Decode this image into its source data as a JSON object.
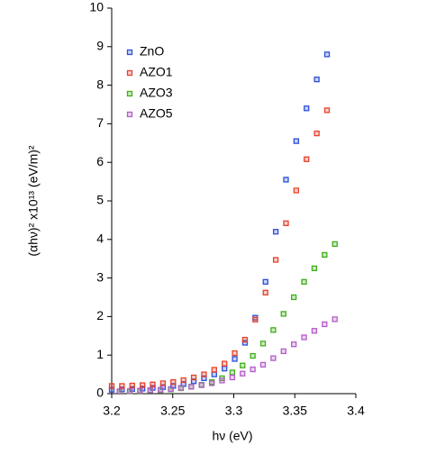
{
  "chart_data": {
    "type": "scatter",
    "xlabel": "hν (eV)",
    "ylabel": "(αhν)² x10¹³ (eV/m)²",
    "xlim": [
      3.2,
      3.4
    ],
    "xticks": [
      3.2,
      3.25,
      3.3,
      3.35,
      3.4
    ],
    "ylim": [
      0,
      10
    ],
    "yticks": [
      0,
      1,
      2,
      3,
      4,
      5,
      6,
      7,
      8,
      9,
      10
    ],
    "legend": "upper left",
    "series": [
      {
        "name": "ZnO",
        "color": "#2b4fd8",
        "x": [
          3.2,
          3.2084,
          3.2168,
          3.2252,
          3.2336,
          3.242,
          3.2504,
          3.2588,
          3.2672,
          3.2756,
          3.284,
          3.2924,
          3.3008,
          3.3092,
          3.3176,
          3.326,
          3.3344,
          3.3428,
          3.3512,
          3.3596,
          3.368,
          3.3764
        ],
        "values": [
          0.1,
          0.11,
          0.12,
          0.13,
          0.15,
          0.17,
          0.2,
          0.25,
          0.32,
          0.4,
          0.5,
          0.65,
          0.9,
          1.32,
          1.97,
          2.9,
          4.2,
          5.55,
          6.55,
          7.4,
          8.15,
          8.8
        ]
      },
      {
        "name": "AZO1",
        "color": "#e8402a",
        "x": [
          3.2,
          3.2084,
          3.2168,
          3.2252,
          3.2336,
          3.242,
          3.2504,
          3.2588,
          3.2672,
          3.2756,
          3.284,
          3.2924,
          3.3008,
          3.3092,
          3.3176,
          3.326,
          3.3344,
          3.3428,
          3.3512,
          3.3596,
          3.368,
          3.3764
        ],
        "values": [
          0.2,
          0.2,
          0.21,
          0.22,
          0.24,
          0.27,
          0.3,
          0.35,
          0.42,
          0.5,
          0.62,
          0.78,
          1.05,
          1.4,
          1.92,
          2.62,
          3.47,
          4.42,
          5.27,
          6.08,
          6.75,
          7.35
        ]
      },
      {
        "name": "AZO3",
        "color": "#3fae1a",
        "x": [
          3.2064,
          3.2148,
          3.2232,
          3.2316,
          3.24,
          3.2484,
          3.2568,
          3.2652,
          3.2736,
          3.282,
          3.2904,
          3.2988,
          3.3072,
          3.3156,
          3.324,
          3.3324,
          3.3408,
          3.3492,
          3.3576,
          3.366,
          3.3744,
          3.3828
        ],
        "values": [
          0.05,
          0.06,
          0.07,
          0.08,
          0.09,
          0.11,
          0.14,
          0.18,
          0.23,
          0.3,
          0.4,
          0.55,
          0.73,
          0.98,
          1.3,
          1.65,
          2.07,
          2.5,
          2.9,
          3.25,
          3.6,
          3.88
        ]
      },
      {
        "name": "AZO5",
        "color": "#b45cc8",
        "x": [
          3.2064,
          3.2148,
          3.2232,
          3.2316,
          3.24,
          3.2484,
          3.2568,
          3.2652,
          3.2736,
          3.282,
          3.2904,
          3.2988,
          3.3072,
          3.3156,
          3.324,
          3.3324,
          3.3408,
          3.3492,
          3.3576,
          3.366,
          3.3744,
          3.3828
        ],
        "values": [
          0.06,
          0.07,
          0.08,
          0.09,
          0.1,
          0.12,
          0.15,
          0.18,
          0.22,
          0.27,
          0.34,
          0.42,
          0.52,
          0.63,
          0.75,
          0.92,
          1.1,
          1.28,
          1.46,
          1.63,
          1.8,
          1.93
        ]
      }
    ]
  }
}
